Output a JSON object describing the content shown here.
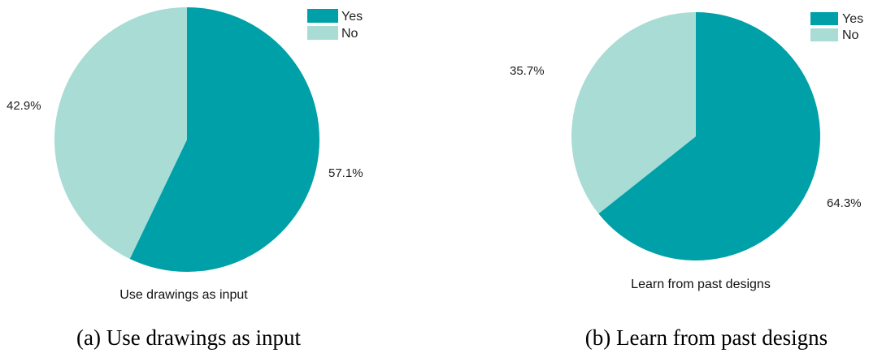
{
  "chart_data": [
    {
      "type": "pie",
      "title": "Use drawings as input",
      "caption": "(a) Use drawings as input",
      "categories": [
        "Yes",
        "No"
      ],
      "values": [
        57.1,
        42.9
      ],
      "value_labels": [
        "57.1%",
        "42.9%"
      ],
      "colors": [
        "#00A0A8",
        "#A8DCD4"
      ],
      "legend": "top-right",
      "start": "12 o'clock, clockwise"
    },
    {
      "type": "pie",
      "title": "Learn from past designs",
      "caption": "(b) Learn from past designs",
      "categories": [
        "Yes",
        "No"
      ],
      "values": [
        64.3,
        35.7
      ],
      "value_labels": [
        "64.3%",
        "35.7%"
      ],
      "colors": [
        "#00A0A8",
        "#A8DCD4"
      ],
      "legend": "top-right",
      "start": "12 o'clock, clockwise"
    }
  ]
}
